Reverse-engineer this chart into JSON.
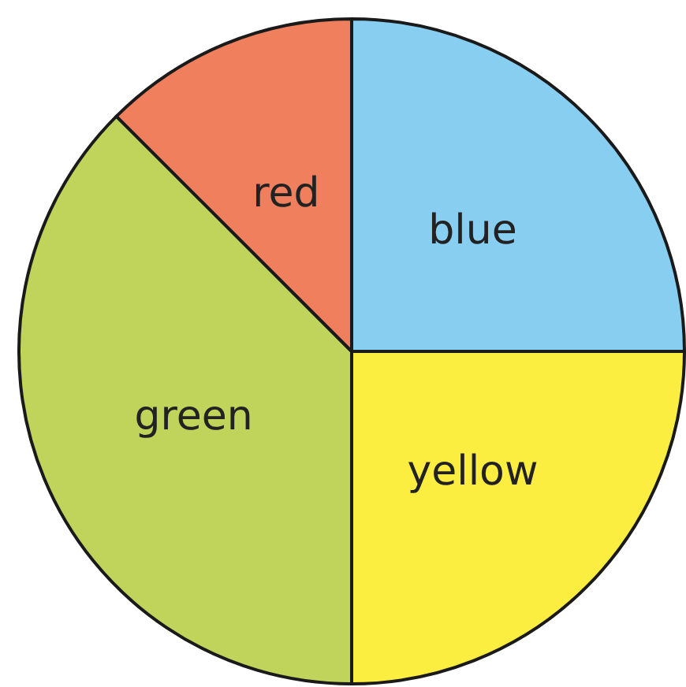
{
  "chart_data": {
    "type": "pie",
    "categories": [
      "blue",
      "yellow",
      "green",
      "red"
    ],
    "values": [
      25,
      25,
      37.5,
      12.5
    ],
    "colors": [
      "#87cef0",
      "#fcee40",
      "#c0d35a",
      "#f07f5e"
    ],
    "legend": false
  }
}
